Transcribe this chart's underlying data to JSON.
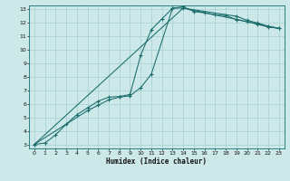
{
  "xlabel": "Humidex (Indice chaleur)",
  "bg_color": "#cce8e8",
  "grid_color": "#aad4d4",
  "line_color": "#1a6b6b",
  "xlim": [
    -0.5,
    23.5
  ],
  "ylim": [
    2.7,
    13.3
  ],
  "xticks": [
    0,
    1,
    2,
    3,
    4,
    5,
    6,
    7,
    8,
    9,
    10,
    11,
    12,
    13,
    14,
    15,
    16,
    17,
    18,
    19,
    20,
    21,
    22,
    23
  ],
  "yticks": [
    3,
    4,
    5,
    6,
    7,
    8,
    9,
    10,
    11,
    12,
    13
  ],
  "line1_x": [
    0,
    1,
    2,
    3,
    4,
    5,
    6,
    7,
    8,
    9,
    10,
    11,
    12,
    13,
    14,
    15,
    16,
    17,
    18,
    19,
    20,
    21,
    22,
    23
  ],
  "line1_y": [
    3.0,
    3.1,
    3.7,
    4.5,
    5.2,
    5.7,
    6.2,
    6.5,
    6.55,
    6.7,
    9.6,
    11.5,
    12.3,
    13.1,
    13.2,
    12.85,
    12.75,
    12.6,
    12.55,
    12.25,
    12.1,
    11.9,
    11.7,
    11.6
  ],
  "line2_x": [
    0,
    5,
    6,
    7,
    8,
    9,
    10,
    11,
    13,
    14,
    19,
    20,
    21,
    22,
    23
  ],
  "line2_y": [
    3.0,
    5.5,
    5.9,
    6.3,
    6.5,
    6.6,
    7.2,
    8.2,
    13.1,
    13.1,
    12.5,
    12.2,
    12.0,
    11.75,
    11.6
  ],
  "line3_x": [
    0,
    14,
    23
  ],
  "line3_y": [
    3.0,
    13.1,
    11.6
  ]
}
